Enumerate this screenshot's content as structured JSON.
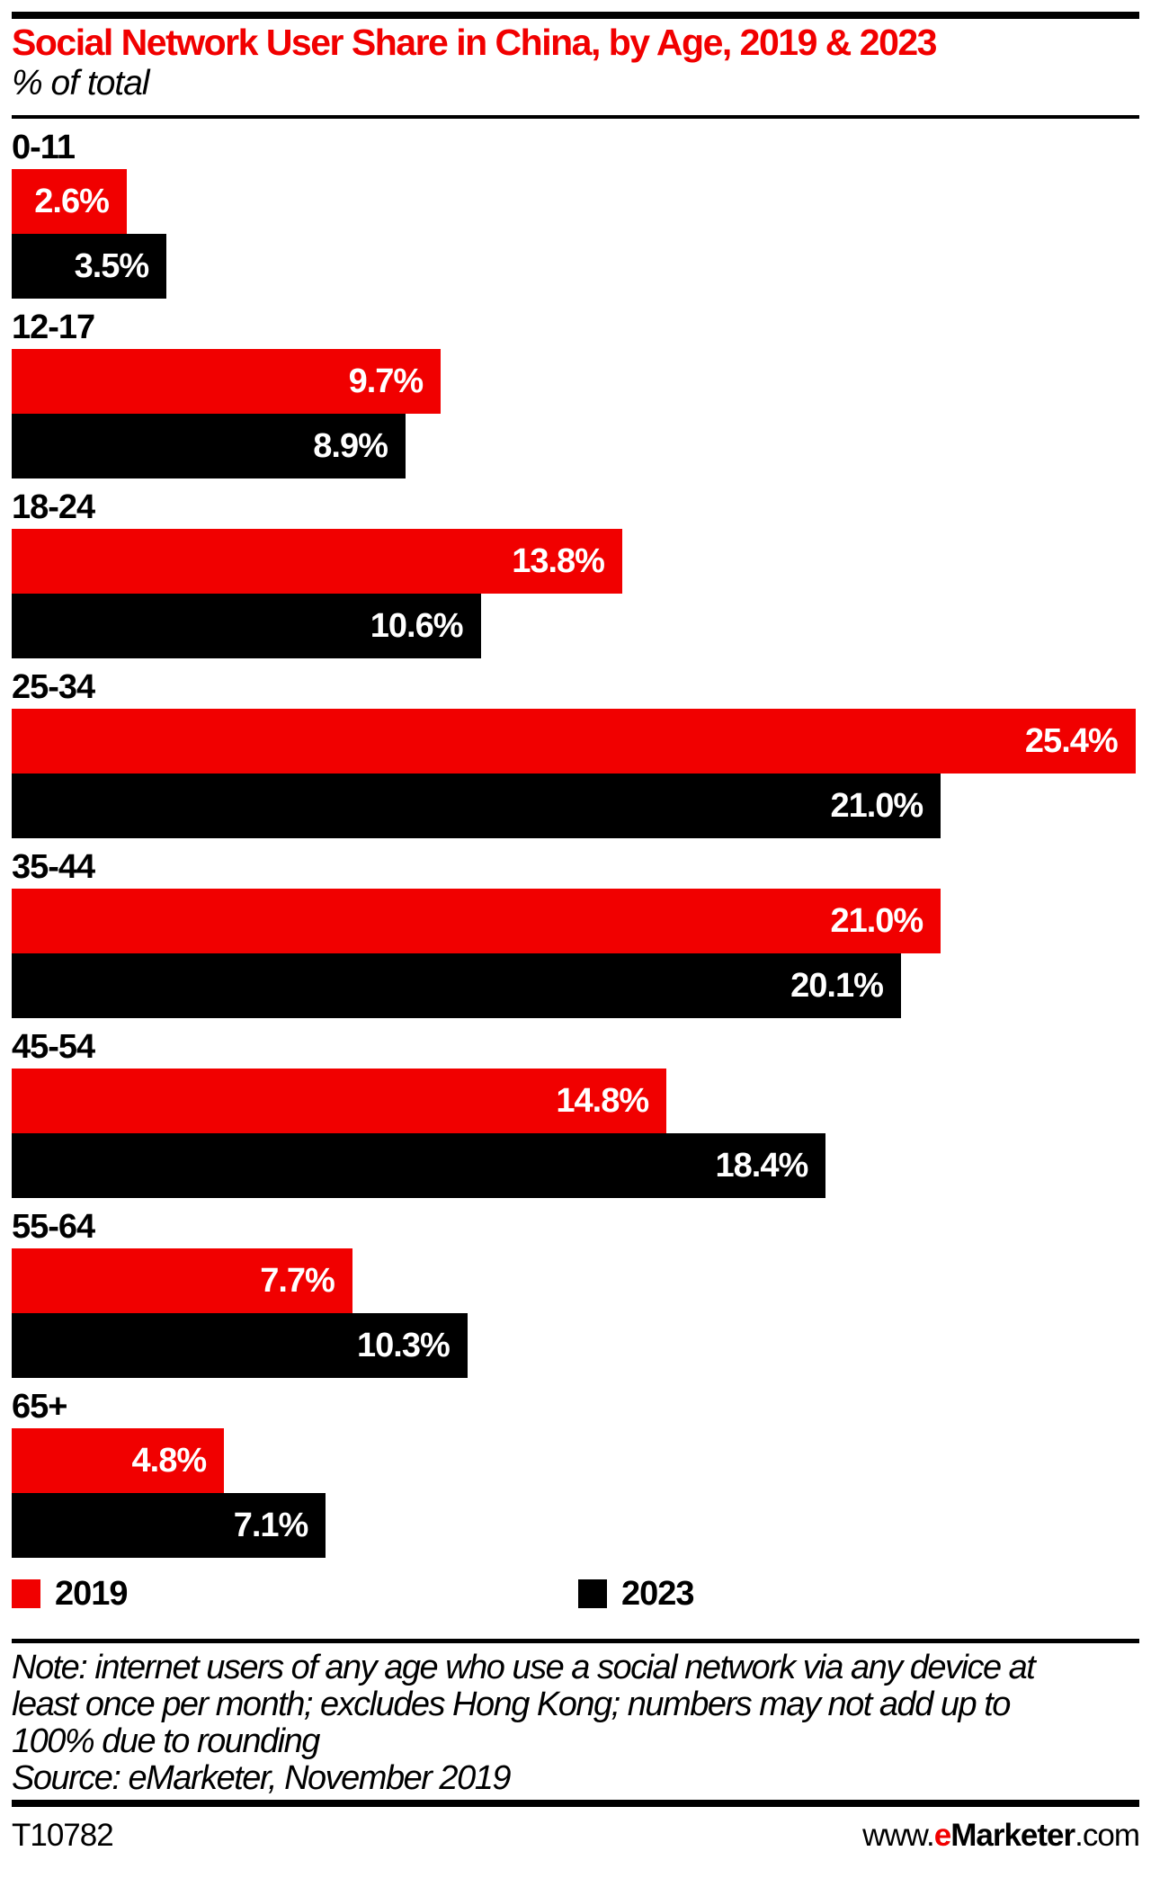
{
  "header": {
    "title": "Social Network User Share in China, by Age, 2019 & 2023",
    "subtitle": "% of total"
  },
  "chart_data": {
    "type": "bar",
    "orientation": "horizontal",
    "title": "Social Network User Share in China, by Age, 2019 & 2023",
    "subtitle": "% of total",
    "unit": "%",
    "categories": [
      "0-11",
      "12-17",
      "18-24",
      "25-34",
      "35-44",
      "45-54",
      "55-64",
      "65+"
    ],
    "series": [
      {
        "name": "2019",
        "color": "#F10000",
        "values": [
          2.6,
          9.7,
          13.8,
          25.4,
          21.0,
          14.8,
          7.7,
          4.8
        ]
      },
      {
        "name": "2023",
        "color": "#000000",
        "values": [
          3.5,
          8.9,
          10.6,
          21.0,
          20.1,
          18.4,
          10.3,
          7.1
        ]
      }
    ],
    "value_label_format": "{value}%",
    "value_labels_position": "inside-end",
    "xlim": [
      0,
      25.4
    ],
    "grid": false,
    "legend_position": "bottom"
  },
  "legend": {
    "items": [
      {
        "label": "2019",
        "color": "#F10000"
      },
      {
        "label": "2023",
        "color": "#000000"
      }
    ]
  },
  "notes": {
    "lines": [
      "Note: internet users of any age who use a social network via any device at",
      "least once per month; excludes Hong Kong; numbers may not add up to",
      "100% due to rounding"
    ],
    "source": "Source: eMarketer, November 2019"
  },
  "footer": {
    "chart_id": "T10782",
    "site": {
      "prefix": "www.",
      "brand_first_letter": "e",
      "brand_rest": "Marketer",
      "suffix": ".com"
    }
  }
}
